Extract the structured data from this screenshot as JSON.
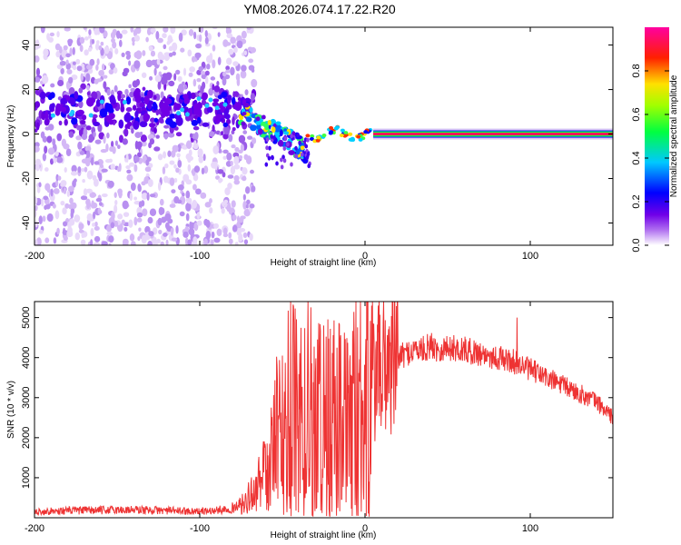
{
  "chart_data": [
    {
      "type": "heatmap",
      "title": "YM08.2026.074.17.22.R20",
      "xlabel": "Height of straight line (km)",
      "ylabel": "Frequency (Hz)",
      "xlim": [
        -200,
        150
      ],
      "ylim": [
        -50,
        48
      ],
      "xticks": [
        -200,
        -100,
        0,
        100
      ],
      "yticks": [
        -40,
        -20,
        0,
        20,
        40
      ],
      "colorbar": {
        "label": "Normalized spectral amplitude",
        "range": [
          0.0,
          1.0
        ],
        "ticks": [
          0.0,
          0.2,
          0.4,
          0.6,
          0.8
        ],
        "tick_labels": [
          "0.0",
          "0.2",
          "0.4",
          "0.6",
          "0.8"
        ],
        "colormap": [
          "#ffffff",
          "#7a00e6",
          "#0000ff",
          "#00ffff",
          "#00ff00",
          "#ffff00",
          "#ff0000",
          "#ff00cc"
        ]
      },
      "features": {
        "noise_region_x": [
          -200,
          -75
        ],
        "noise_band_center_hz": 10,
        "trail_x": [
          -75,
          -35
        ],
        "trail_start_hz": 10,
        "trail_end_hz": -8,
        "converge_x": [
          -35,
          5
        ],
        "steady_line_x": [
          5,
          150
        ],
        "steady_line_hz": 0
      }
    },
    {
      "type": "line",
      "xlabel": "Height of straight line (km)",
      "ylabel": "SNR (10 * v/v)",
      "xlim": [
        -200,
        150
      ],
      "ylim": [
        0,
        5400
      ],
      "xticks": [
        -200,
        -100,
        0,
        100
      ],
      "yticks": [
        1000,
        2000,
        3000,
        4000,
        5000
      ],
      "series": [
        {
          "name": "SNR",
          "color": "#ee3333",
          "x": [
            -200,
            -180,
            -160,
            -140,
            -120,
            -100,
            -90,
            -80,
            -75,
            -70,
            -65,
            -60,
            -55,
            -50,
            -45,
            -40,
            -35,
            -30,
            -25,
            -20,
            -15,
            -10,
            -5,
            0,
            5,
            10,
            15,
            20,
            25,
            30,
            35,
            40,
            45,
            50,
            60,
            70,
            80,
            90,
            100,
            110,
            120,
            130,
            140,
            150
          ],
          "values": [
            150,
            180,
            190,
            200,
            180,
            160,
            180,
            250,
            330,
            520,
            800,
            1200,
            1800,
            2200,
            2600,
            2500,
            2700,
            2600,
            2500,
            2400,
            2300,
            2200,
            2900,
            3000,
            3300,
            3800,
            3900,
            4000,
            4100,
            4200,
            4200,
            4300,
            4200,
            4250,
            4200,
            4100,
            4000,
            3900,
            3700,
            3500,
            3300,
            3100,
            2900,
            2500
          ]
        }
      ],
      "peaks": [
        {
          "x": 8,
          "y": 5300
        },
        {
          "x": -25,
          "y": 4800
        },
        {
          "x": 92,
          "y": 5000
        }
      ]
    }
  ]
}
